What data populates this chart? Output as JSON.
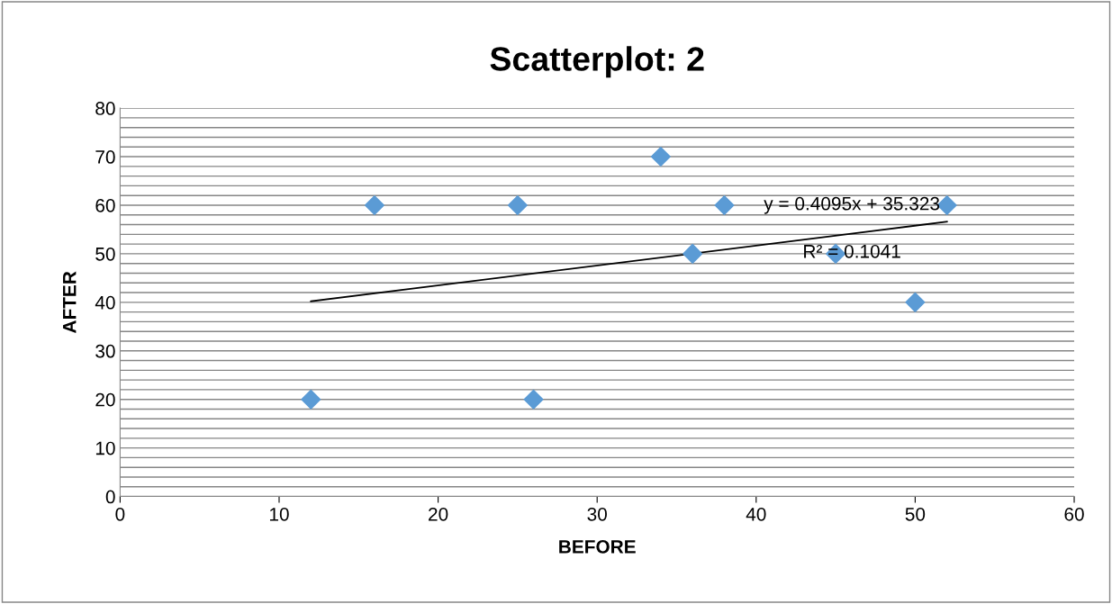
{
  "chart_data": {
    "type": "scatter",
    "title": "Scatterplot: 2",
    "xlabel": "BEFORE",
    "ylabel": "AFTER",
    "xlim": [
      0,
      60
    ],
    "xticks": [
      0,
      10,
      20,
      30,
      40,
      50,
      60
    ],
    "ylim": [
      0,
      80
    ],
    "yticks": [
      0,
      {
        "value": 2,
        "label": null
      },
      {
        "value": 4,
        "label": null
      },
      {
        "value": 6,
        "label": null
      },
      {
        "value": 8,
        "label": null
      },
      10,
      {
        "value": 12,
        "label": null
      },
      {
        "value": 14,
        "label": null
      },
      {
        "value": 16,
        "label": null
      },
      {
        "value": 18,
        "label": null
      },
      20,
      {
        "value": 22,
        "label": null
      },
      {
        "value": 24,
        "label": null
      },
      {
        "value": 26,
        "label": null
      },
      {
        "value": 28,
        "label": null
      },
      30,
      {
        "value": 32,
        "label": null
      },
      {
        "value": 34,
        "label": null
      },
      {
        "value": 36,
        "label": null
      },
      {
        "value": 38,
        "label": null
      },
      40,
      {
        "value": 42,
        "label": null
      },
      {
        "value": 44,
        "label": null
      },
      {
        "value": 46,
        "label": null
      },
      {
        "value": 48,
        "label": null
      },
      50,
      {
        "value": 52,
        "label": null
      },
      {
        "value": 54,
        "label": null
      },
      {
        "value": 56,
        "label": null
      },
      {
        "value": 58,
        "label": null
      },
      60,
      {
        "value": 62,
        "label": null
      },
      {
        "value": 64,
        "label": null
      },
      {
        "value": 66,
        "label": null
      },
      {
        "value": 68,
        "label": null
      },
      70,
      {
        "value": 72,
        "label": null
      },
      {
        "value": 74,
        "label": null
      },
      {
        "value": 76,
        "label": null
      },
      {
        "value": 78,
        "label": null
      },
      80
    ],
    "grid": "y",
    "legend": false,
    "series": [
      {
        "color": "#5b9bd5",
        "marker": "diamond",
        "x": [
          12,
          16,
          25,
          26,
          34,
          36,
          38,
          45,
          50,
          52
        ],
        "values": [
          20,
          60,
          60,
          20,
          70,
          50,
          60,
          50,
          40,
          60
        ]
      },
      {
        "type": "line",
        "color": "#000000",
        "marker": "none",
        "line_style": "solid",
        "x": [
          12,
          52
        ],
        "values": [
          40.2,
          56.6
        ]
      }
    ],
    "annotations": [
      "y = 0.4095x + 35.323",
      "R² = 0.1041"
    ]
  }
}
